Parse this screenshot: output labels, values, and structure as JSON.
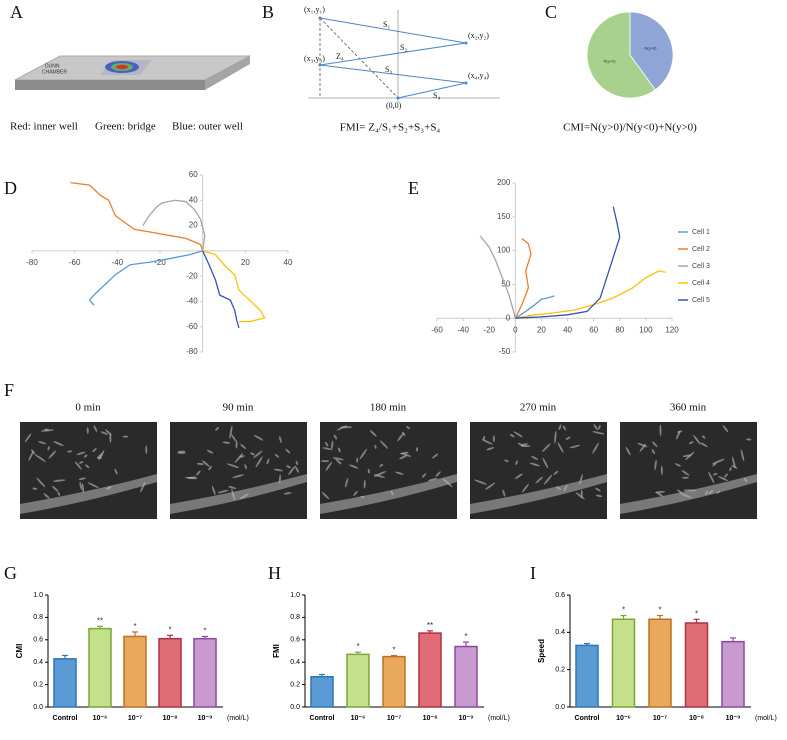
{
  "panel_labels": [
    "A",
    "B",
    "C",
    "D",
    "E",
    "F",
    "G",
    "H",
    "I"
  ],
  "diagram_a": {
    "device_label": [
      "DUNN",
      "CHAMBER"
    ],
    "caption": [
      "Red: inner well",
      "Green: bridge",
      "Blue: outer well"
    ]
  },
  "diagram_b": {
    "points": [
      "(x₁,y₁)",
      "(x₂,y₂)",
      "(x₃,y₃)",
      "(x₄,y₄)",
      "(0,0)"
    ],
    "segments": [
      "S₁",
      "S₂",
      "S₃",
      "S₄"
    ],
    "displacement": "Z₄",
    "caption": "FMI= Z₄/S₁+S₂+S₃+S₄"
  },
  "chart_data": [
    {
      "type": "pie",
      "categories": [
        "N(y>0)",
        "N(y<0)"
      ],
      "values": [
        40,
        60
      ],
      "colors": [
        "#8ea5d6",
        "#a9d18e"
      ],
      "caption": "CMI=N(y>0)/N(y<0)+N(y>0)"
    },
    {
      "type": "line",
      "xlim": [
        -80,
        40
      ],
      "ylim": [
        -80,
        60
      ],
      "xticks": [
        -80,
        -60,
        -40,
        -20,
        20,
        40
      ],
      "yticks": [
        60,
        40,
        20,
        -20,
        -40,
        -60,
        -80
      ],
      "series": [
        {
          "color": "#5b9bd5",
          "x": [
            0,
            -6,
            -15,
            -25,
            -34,
            -41,
            -46,
            -51,
            -53,
            -51
          ],
          "values": [
            0,
            -3,
            -6,
            -9,
            -11,
            -19,
            -27,
            -35,
            -39,
            -43
          ]
        },
        {
          "color": "#ed7d31",
          "x": [
            -62,
            -53,
            -48,
            -44,
            -41,
            -37,
            -32,
            -25,
            -15,
            -8,
            -1,
            0
          ],
          "values": [
            54,
            52,
            44,
            40,
            28,
            23,
            17,
            15,
            12,
            10,
            5,
            0
          ]
        },
        {
          "color": "#a5a5a5",
          "x": [
            0,
            1,
            -1,
            -4,
            -8,
            -13,
            -19,
            -22,
            -25,
            -28
          ],
          "values": [
            0,
            12,
            25,
            33,
            39,
            40,
            38,
            34,
            28,
            20
          ]
        },
        {
          "color": "#ffc000",
          "x": [
            0,
            6,
            10,
            15,
            17,
            22,
            27,
            29,
            22,
            17
          ],
          "values": [
            0,
            -3,
            -11,
            -19,
            -31,
            -39,
            -47,
            -53,
            -56,
            -56
          ]
        },
        {
          "color": "#2f55b5",
          "x": [
            0,
            3,
            6,
            8,
            13,
            15,
            16,
            17
          ],
          "values": [
            0,
            -11,
            -23,
            -35,
            -39,
            -47,
            -55,
            -61
          ]
        }
      ]
    },
    {
      "type": "line",
      "xlim": [
        -60,
        120
      ],
      "ylim": [
        -50,
        200
      ],
      "xticks": [
        -60,
        -40,
        -20,
        0,
        20,
        40,
        60,
        80,
        100,
        120
      ],
      "yticks": [
        200,
        150,
        100,
        50,
        0,
        -50
      ],
      "series": [
        {
          "name": "Cell 1",
          "color": "#5b9bd5",
          "x": [
            0,
            8,
            15,
            20,
            25,
            30
          ],
          "values": [
            0,
            10,
            20,
            28,
            30,
            33
          ]
        },
        {
          "name": "Cell 2",
          "color": "#ed7d31",
          "x": [
            0,
            5,
            10,
            8,
            12,
            10,
            5
          ],
          "values": [
            0,
            20,
            45,
            70,
            95,
            110,
            118
          ]
        },
        {
          "name": "Cell 3",
          "color": "#a5a5a5",
          "x": [
            0,
            -2,
            -5,
            -10,
            -15,
            -20,
            -27
          ],
          "values": [
            0,
            15,
            35,
            60,
            85,
            105,
            122
          ]
        },
        {
          "name": "Cell 4",
          "color": "#ffc000",
          "x": [
            0,
            15,
            30,
            45,
            60,
            75,
            90,
            100,
            110,
            115
          ],
          "values": [
            0,
            5,
            8,
            12,
            20,
            30,
            45,
            60,
            70,
            68
          ]
        },
        {
          "name": "Cell 5",
          "color": "#2f55b5",
          "x": [
            0,
            20,
            40,
            55,
            65,
            70,
            75,
            80,
            78,
            75
          ],
          "values": [
            0,
            2,
            5,
            10,
            30,
            60,
            90,
            120,
            140,
            165
          ]
        }
      ]
    },
    {
      "type": "bar",
      "ylabel": "CMI",
      "unit": "(mol/L)",
      "categories": [
        "Control",
        "10⁻⁶",
        "10⁻⁷",
        "10⁻⁸",
        "10⁻⁹"
      ],
      "values": [
        0.43,
        0.7,
        0.63,
        0.61,
        0.61
      ],
      "errors": [
        0.03,
        0.02,
        0.04,
        0.03,
        0.02
      ],
      "significance": [
        null,
        "**",
        "*",
        "*",
        "*"
      ],
      "colors": [
        "#5b9bd5",
        "#c5e08a",
        "#e8a95e",
        "#e06c75",
        "#c89ad0"
      ],
      "edge_colors": [
        "#2e75b6",
        "#7aa73a",
        "#c07020",
        "#b03040",
        "#8a4aa0"
      ],
      "ylim": [
        0,
        1
      ],
      "yticks": [
        {
          "value": 0,
          "label": "0.0"
        },
        {
          "value": 0.2,
          "label": "0.2"
        },
        {
          "value": 0.4,
          "label": "0.4"
        },
        {
          "value": 0.6,
          "label": "0.6"
        },
        {
          "value": 0.8,
          "label": "0.8"
        },
        {
          "value": 1,
          "label": "1.0"
        }
      ]
    },
    {
      "type": "bar",
      "ylabel": "FMI",
      "unit": "(mol/L)",
      "categories": [
        "Control",
        "10⁻⁶",
        "10⁻⁷",
        "10⁻⁸",
        "10⁻⁹"
      ],
      "values": [
        0.27,
        0.47,
        0.45,
        0.66,
        0.54
      ],
      "errors": [
        0.02,
        0.02,
        0.01,
        0.02,
        0.04
      ],
      "significance": [
        null,
        "*",
        "*",
        "**",
        "*"
      ],
      "colors": [
        "#5b9bd5",
        "#c5e08a",
        "#e8a95e",
        "#e06c75",
        "#c89ad0"
      ],
      "edge_colors": [
        "#2e75b6",
        "#7aa73a",
        "#c07020",
        "#b03040",
        "#8a4aa0"
      ],
      "ylim": [
        0,
        1
      ],
      "yticks": [
        {
          "value": 0,
          "label": "0.0"
        },
        {
          "value": 0.2,
          "label": "0.2"
        },
        {
          "value": 0.4,
          "label": "0.4"
        },
        {
          "value": 0.6,
          "label": "0.6"
        },
        {
          "value": 0.8,
          "label": "0.8"
        },
        {
          "value": 1,
          "label": "1.0"
        }
      ]
    },
    {
      "type": "bar",
      "ylabel": "Speed",
      "unit": "(mol/L)",
      "categories": [
        "Control",
        "10⁻⁶",
        "10⁻⁷",
        "10⁻⁸",
        "10⁻⁹"
      ],
      "values": [
        0.33,
        0.47,
        0.47,
        0.45,
        0.35
      ],
      "errors": [
        0.01,
        0.02,
        0.02,
        0.02,
        0.02
      ],
      "significance": [
        null,
        "*",
        "*",
        "*",
        null
      ],
      "colors": [
        "#5b9bd5",
        "#c5e08a",
        "#e8a95e",
        "#e06c75",
        "#c89ad0"
      ],
      "edge_colors": [
        "#2e75b6",
        "#7aa73a",
        "#c07020",
        "#b03040",
        "#8a4aa0"
      ],
      "ylim": [
        0,
        0.6
      ],
      "yticks": [
        {
          "value": 0,
          "label": "0.0"
        },
        {
          "value": 0.2,
          "label": "0.2"
        },
        {
          "value": 0.4,
          "label": "0.4"
        },
        {
          "value": 0.6,
          "label": "0.6"
        }
      ]
    }
  ],
  "images_f": {
    "times": [
      "0 min",
      "90 min",
      "180 min",
      "270 min",
      "360 min"
    ]
  }
}
